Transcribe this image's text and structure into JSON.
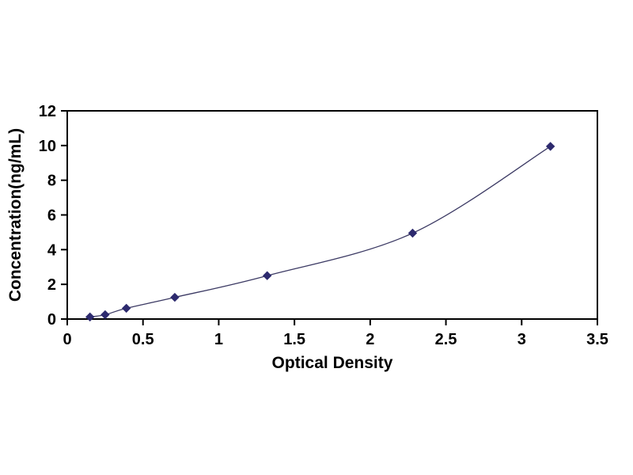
{
  "figure": {
    "background": "#ffffff",
    "description": "ELISA standard curve line chart"
  },
  "chart_data": {
    "type": "line",
    "title": "",
    "xlabel": "Optical Density",
    "ylabel": "Concentration(ng/mL)",
    "x": [
      0.15,
      0.25,
      0.39,
      0.71,
      1.32,
      2.28,
      3.19
    ],
    "y": [
      0.12,
      0.25,
      0.62,
      1.25,
      2.5,
      4.95,
      9.95
    ],
    "xlim": [
      0,
      3.5
    ],
    "ylim": [
      0,
      12
    ],
    "x_ticks": [
      0,
      0.5,
      1,
      1.5,
      2,
      2.5,
      3,
      3.5
    ],
    "y_ticks": [
      0,
      2,
      4,
      6,
      8,
      10,
      12
    ],
    "marker": "diamond",
    "marker_color": "#2d2a6e",
    "line_color": "#3c3a64",
    "axis_color": "#000000",
    "grid": false,
    "legend": false
  }
}
